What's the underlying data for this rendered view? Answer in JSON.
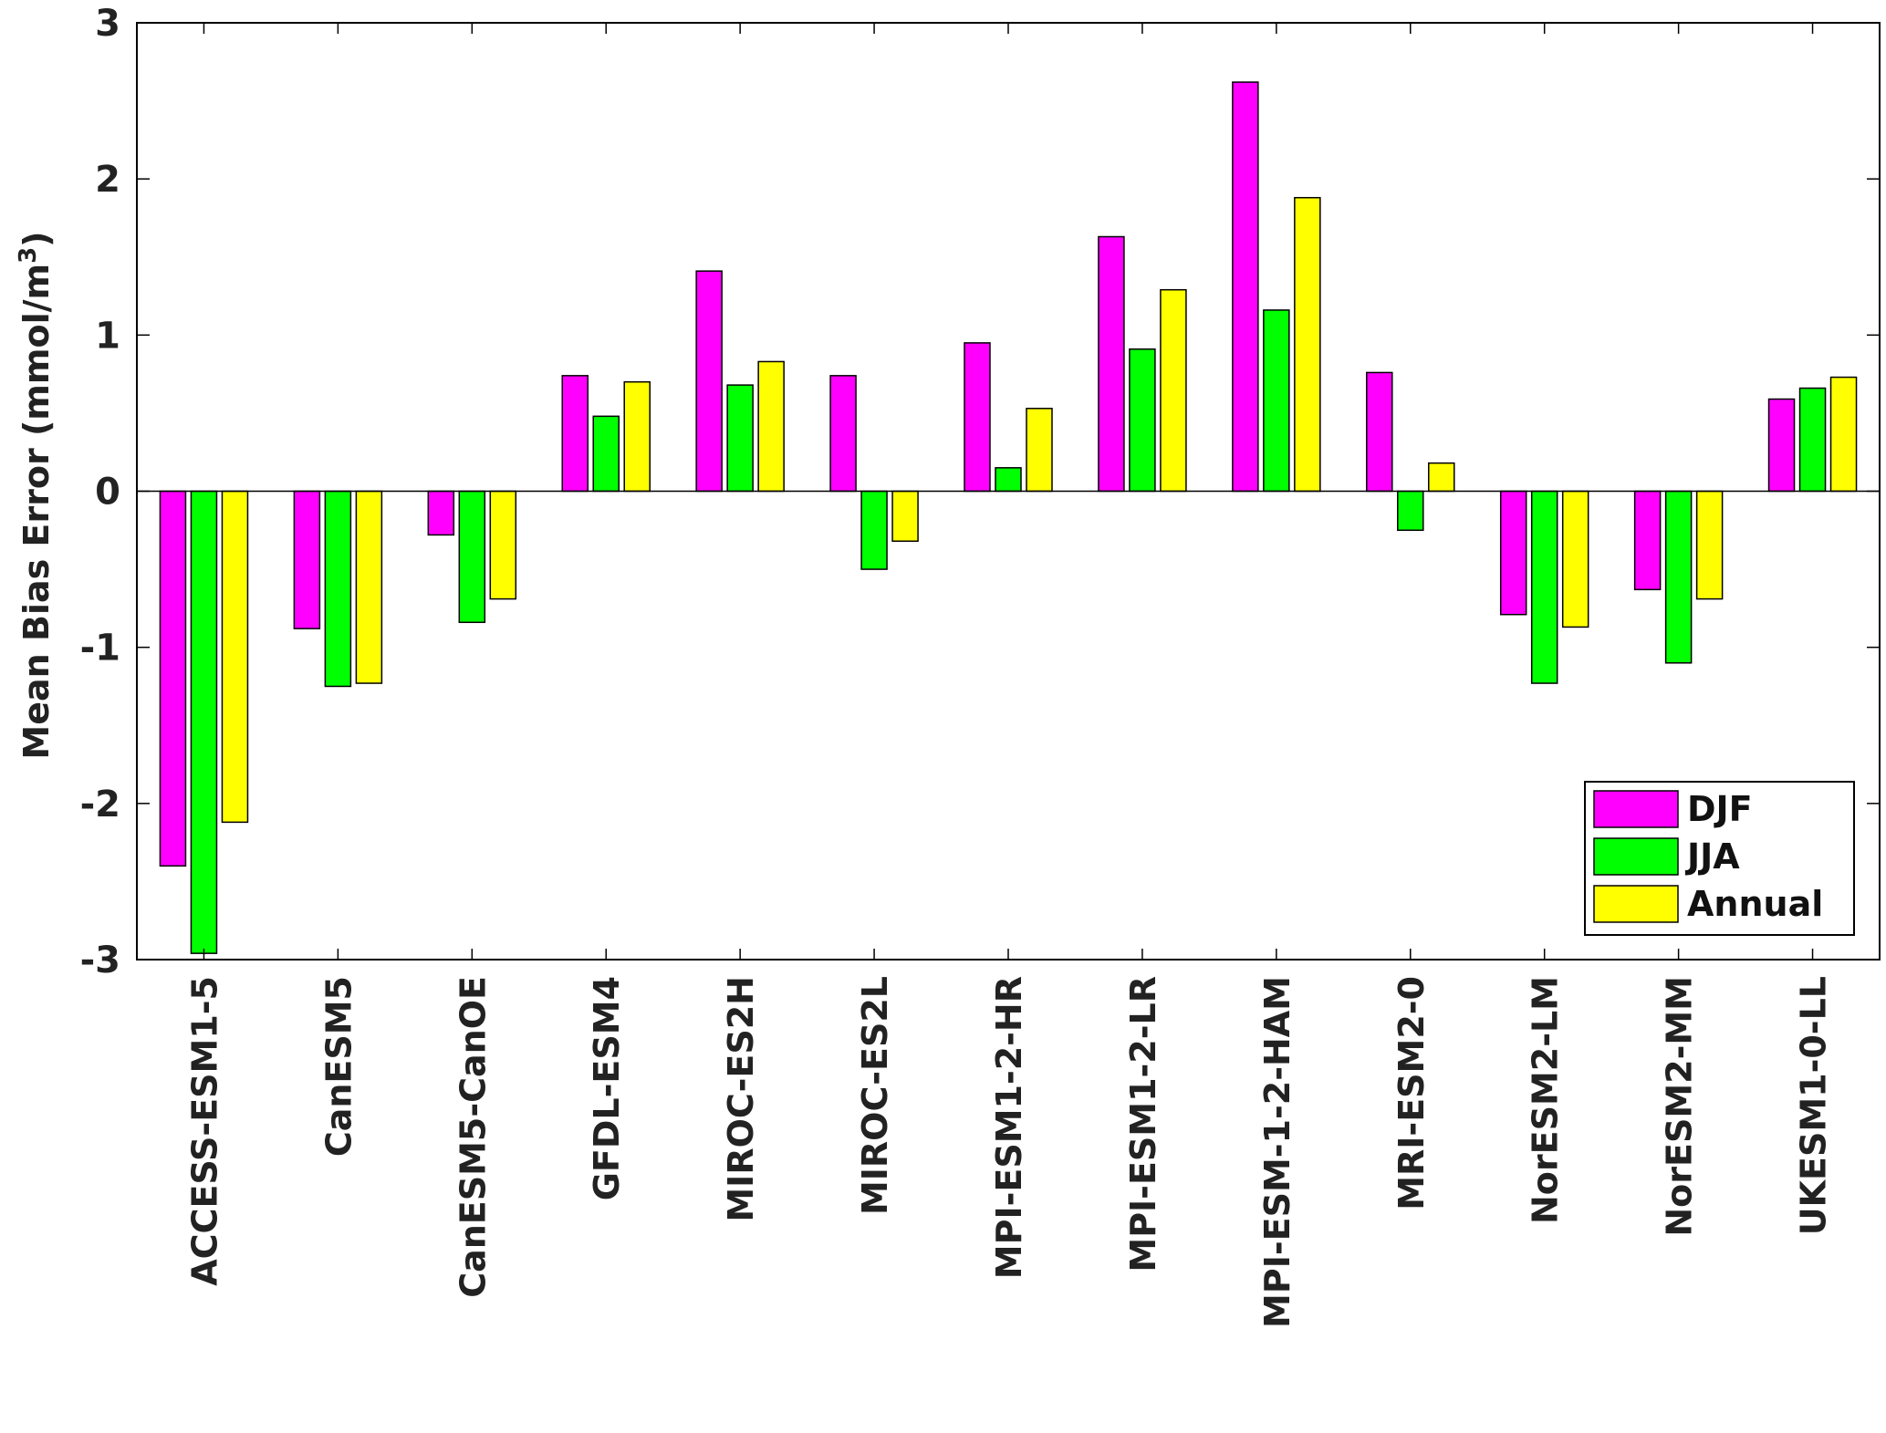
{
  "chart_data": {
    "type": "bar",
    "title": "",
    "xlabel": "",
    "ylabel": "Mean Bias Error (mmol/m",
    "ylabel_superscript": "3",
    "ylabel_suffix": ")",
    "ylim": [
      -3,
      3
    ],
    "yticks": [
      3,
      2,
      1,
      0,
      -1,
      -2,
      -3
    ],
    "ytick_labels": [
      "3",
      "2",
      "1",
      "0",
      "-1",
      "-2",
      "-3"
    ],
    "legend_position": "bottom-right",
    "grid": false,
    "categories": [
      "ACCESS-ESM1-5",
      "CanESM5",
      "CanESM5-CanOE",
      "GFDL-ESM4",
      "MIROC-ES2H",
      "MIROC-ES2L",
      "MPI-ESM1-2-HR",
      "MPI-ESM1-2-LR",
      "MPI-ESM-1-2-HAM",
      "MRI-ESM2-0",
      "NorESM2-LM",
      "NorESM2-MM",
      "UKESM1-0-LL"
    ],
    "series": [
      {
        "name": "DJF",
        "color": "#ff00ff",
        "values": [
          -2.4,
          -0.88,
          -0.28,
          0.74,
          1.41,
          0.74,
          0.95,
          1.63,
          2.62,
          0.76,
          -0.79,
          -0.63,
          0.59
        ]
      },
      {
        "name": "JJA",
        "color": "#00ff00",
        "values": [
          -2.96,
          -1.25,
          -0.84,
          0.48,
          0.68,
          -0.5,
          0.15,
          0.91,
          1.16,
          -0.25,
          -1.23,
          -1.1,
          0.66
        ]
      },
      {
        "name": "Annual",
        "color": "#ffff00",
        "values": [
          -2.12,
          -1.23,
          -0.69,
          0.7,
          0.83,
          -0.32,
          0.53,
          1.29,
          1.88,
          0.18,
          -0.87,
          -0.69,
          0.73
        ]
      }
    ]
  }
}
